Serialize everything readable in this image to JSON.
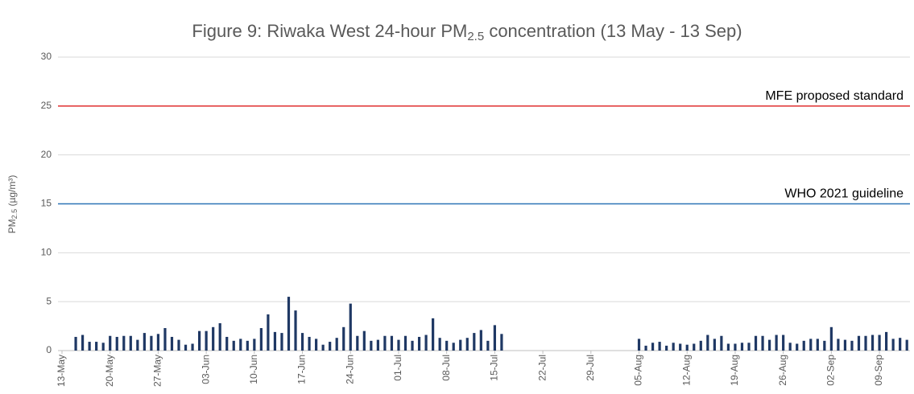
{
  "chart_data": {
    "type": "bar",
    "title": [
      "Figure 9: Riwaka West 24-hour PM",
      "2.5",
      " concentration (13 May - 13 Sep)"
    ],
    "y_label": [
      "PM",
      "2.5",
      " (µg/m³)"
    ],
    "color": "#1f3864",
    "grid": true,
    "ylim": [
      0,
      30
    ],
    "yticks": [
      0,
      5,
      10,
      15,
      20,
      25,
      30
    ],
    "reference_lines": [
      {
        "label": "MFE proposed standard",
        "value": 25,
        "color": "#e03030"
      },
      {
        "label": "WHO 2021 guideline",
        "value": 15,
        "color": "#2e75b6"
      }
    ],
    "categories": [
      "13-May",
      null,
      null,
      null,
      null,
      null,
      null,
      "20-May",
      null,
      null,
      null,
      null,
      null,
      null,
      "27-May",
      null,
      null,
      null,
      null,
      null,
      null,
      "03-Jun",
      null,
      null,
      null,
      null,
      null,
      null,
      "10-Jun",
      null,
      null,
      null,
      null,
      null,
      null,
      "17-Jun",
      null,
      null,
      null,
      null,
      null,
      null,
      "24-Jun",
      null,
      null,
      null,
      null,
      null,
      null,
      "01-Jul",
      null,
      null,
      null,
      null,
      null,
      null,
      "08-Jul",
      null,
      null,
      null,
      null,
      null,
      null,
      "15-Jul",
      null,
      null,
      null,
      null,
      null,
      null,
      "22-Jul",
      null,
      null,
      null,
      null,
      null,
      null,
      "29-Jul",
      null,
      null,
      null,
      null,
      null,
      null,
      "05-Aug",
      null,
      null,
      null,
      null,
      null,
      null,
      "12-Aug",
      null,
      null,
      null,
      null,
      null,
      null,
      "19-Aug",
      null,
      null,
      null,
      null,
      null,
      null,
      "26-Aug",
      null,
      null,
      null,
      null,
      null,
      null,
      "02-Sep",
      null,
      null,
      null,
      null,
      null,
      null,
      "09-Sep",
      null,
      null,
      null,
      null
    ],
    "values": [
      null,
      null,
      1.4,
      1.6,
      0.9,
      0.9,
      0.8,
      1.5,
      1.4,
      1.5,
      1.5,
      1.1,
      1.8,
      1.5,
      1.7,
      2.3,
      1.4,
      1.1,
      0.6,
      0.7,
      2.0,
      2.0,
      2.4,
      2.8,
      1.4,
      1.0,
      1.2,
      1.0,
      1.2,
      2.3,
      3.7,
      1.9,
      1.8,
      5.5,
      4.1,
      1.8,
      1.4,
      1.2,
      0.6,
      0.9,
      1.3,
      2.4,
      4.8,
      1.5,
      2.0,
      1.0,
      1.1,
      1.5,
      1.5,
      1.1,
      1.5,
      1.0,
      1.4,
      1.6,
      3.3,
      1.3,
      1.0,
      0.8,
      1.1,
      1.3,
      1.8,
      2.1,
      1.0,
      2.6,
      1.7,
      null,
      null,
      null,
      null,
      null,
      null,
      null,
      null,
      null,
      null,
      null,
      null,
      null,
      null,
      null,
      null,
      null,
      null,
      null,
      1.2,
      0.5,
      0.8,
      0.9,
      0.5,
      0.8,
      0.7,
      0.6,
      0.7,
      1.0,
      1.6,
      1.2,
      1.5,
      0.7,
      0.7,
      0.8,
      0.8,
      1.5,
      1.5,
      1.1,
      1.6,
      1.6,
      0.8,
      0.7,
      1.0,
      1.2,
      1.2,
      1.0,
      2.4,
      1.2,
      1.1,
      1.0,
      1.5,
      1.5,
      1.6,
      1.6,
      1.9,
      1.2,
      1.3,
      1.1
    ]
  }
}
